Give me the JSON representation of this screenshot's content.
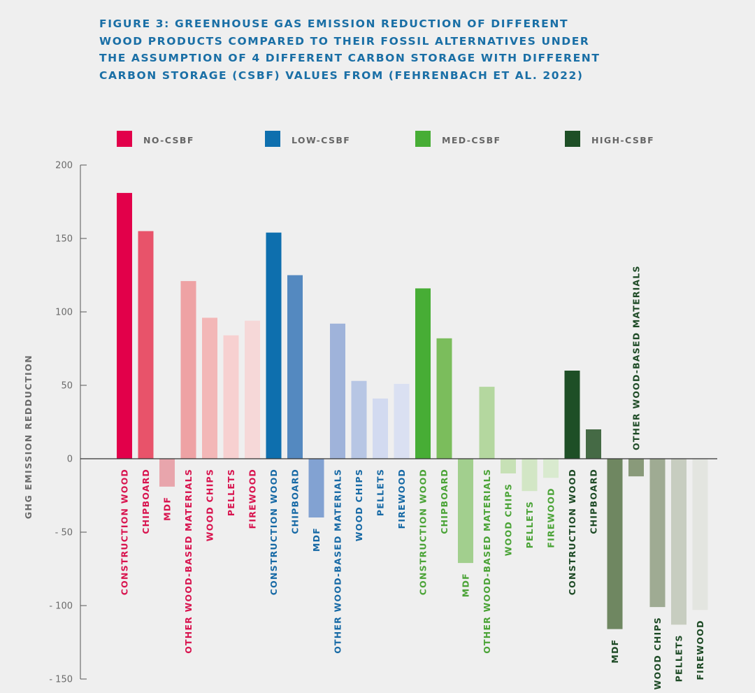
{
  "figure": {
    "title_lines": [
      "FIGURE 3: GREENHOUSE GAS EMISSION REDUCTION OF DIFFERENT",
      "WOOD PRODUCTS COMPARED TO THEIR FOSSIL ALTERNATIVES UNDER",
      "THE ASSUMPTION OF 4 DIFFERENT CARBON STORAGE WITH DIFFERENT",
      "CARBON STORAGE (CSBF) VALUES FROM (FEHRENBACH ET AL. 2022)"
    ],
    "title_color": "#1a6fa6"
  },
  "chart_data": {
    "type": "bar",
    "title": "FIGURE 3: GREENHOUSE GAS EMISSION REDUCTION OF DIFFERENT WOOD PRODUCTS COMPARED TO THEIR FOSSIL ALTERNATIVES UNDER THE ASSUMPTION OF 4 DIFFERENT CARBON STORAGE WITH DIFFERENT CARBON STORAGE (CSBF) VALUES FROM (FEHRENBACH ET AL. 2022)",
    "xlabel": "",
    "ylabel": "GHG EMISSION REDDUCTION",
    "ylim": [
      -150,
      200
    ],
    "yticks": [
      200,
      150,
      100,
      50,
      0,
      -50,
      -100,
      -150
    ],
    "ytick_labels": [
      "200",
      "150",
      "100",
      "50",
      "0",
      "- 50",
      "- 100",
      "- 150"
    ],
    "grid": false,
    "legend_position": "top",
    "categories": [
      "CONSTRUCTION WOOD",
      "CHIPBOARD",
      "MDF",
      "OTHER WOOD-BASED MATERIALS",
      "WOOD CHIPS",
      "PELLETS",
      "FIREWOOD"
    ],
    "series": [
      {
        "name": "NO-CSBF",
        "color": "#e2004a",
        "label_color": "#d8134e",
        "bar_colors": [
          "#e2004a",
          "#e8536a",
          "#e8a5ac",
          "#eea2a4",
          "#f3b7b7",
          "#f7d0d0",
          "#f6d8d8"
        ],
        "values": [
          181,
          155,
          -19,
          121,
          96,
          84,
          94
        ]
      },
      {
        "name": "LOW-CSBF",
        "color": "#0e6fae",
        "label_color": "#1669a5",
        "bar_colors": [
          "#0e6fae",
          "#5489c0",
          "#82a2d2",
          "#9fb3da",
          "#b7c6e4",
          "#d2daf0",
          "#dae0f2"
        ],
        "values": [
          154,
          125,
          -40,
          92,
          53,
          41,
          51
        ]
      },
      {
        "name": "MED-CSBF",
        "color": "#47ad35",
        "label_color": "#4aa336",
        "bar_colors": [
          "#47ad35",
          "#7bbd5c",
          "#a2cf8e",
          "#b4d79f",
          "#c7e1b6",
          "#d2e6c5",
          "#d9eacf"
        ],
        "values": [
          116,
          82,
          -71,
          49,
          -10,
          -22,
          -13
        ]
      },
      {
        "name": "HIGH-CSBF",
        "color": "#1e4f26",
        "label_color": "#1d4a25",
        "bar_colors": [
          "#1e4f26",
          "#456a45",
          "#6f8761",
          "#899a7a",
          "#9fab93",
          "#c7cdc0",
          "#e3e5e0"
        ],
        "values": [
          60,
          20,
          -116,
          -12,
          -101,
          -113,
          -103
        ]
      }
    ]
  }
}
